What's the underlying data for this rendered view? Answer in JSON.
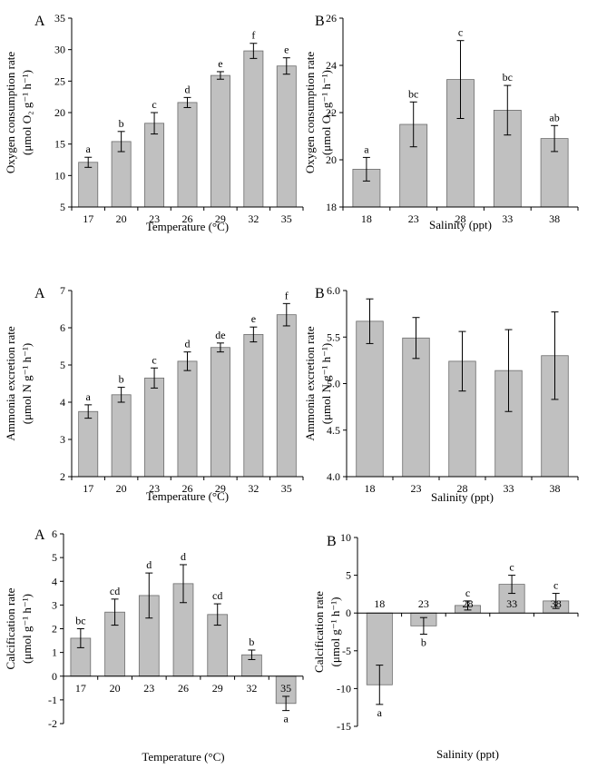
{
  "chart_data": [
    {
      "id": "oxy-temp",
      "panel_label": "A",
      "type": "bar",
      "categories": [
        "17",
        "20",
        "23",
        "26",
        "29",
        "32",
        "35"
      ],
      "values": [
        12.1,
        15.4,
        18.3,
        21.6,
        25.9,
        29.8,
        27.4
      ],
      "errors": [
        0.8,
        1.6,
        1.7,
        0.8,
        0.6,
        1.2,
        1.3
      ],
      "letters": [
        "a",
        "b",
        "c",
        "d",
        "e",
        "f",
        "e"
      ],
      "ylim": [
        5,
        35
      ],
      "yticks": [
        5,
        10,
        15,
        20,
        25,
        30,
        35
      ],
      "ytick_labels": [
        "5",
        "10",
        "15",
        "20",
        "25",
        "30",
        "35"
      ],
      "xlabel": "Temperature (°C)",
      "ylabel": [
        "Oxygen consumption rate",
        "(μmol O₂ g⁻¹ h⁻¹)"
      ]
    },
    {
      "id": "oxy-sal",
      "panel_label": "B",
      "type": "bar",
      "categories": [
        "18",
        "23",
        "28",
        "33",
        "38"
      ],
      "values": [
        19.6,
        21.5,
        23.4,
        22.1,
        20.9
      ],
      "errors": [
        0.5,
        0.95,
        1.65,
        1.05,
        0.55
      ],
      "letters": [
        "a",
        "bc",
        "c",
        "bc",
        "ab"
      ],
      "ylim": [
        18,
        26
      ],
      "yticks": [
        18,
        20,
        22,
        24,
        26
      ],
      "ytick_labels": [
        "18",
        "20",
        "22",
        "24",
        "26"
      ],
      "xlabel": "Salinity (ppt)",
      "ylabel": [
        "Oxygen consumption rate",
        "(μmol O₂ g⁻¹ h⁻¹)"
      ]
    },
    {
      "id": "amm-temp",
      "panel_label": "A",
      "type": "bar",
      "categories": [
        "17",
        "20",
        "23",
        "26",
        "29",
        "32",
        "35"
      ],
      "values": [
        3.75,
        4.2,
        4.65,
        5.1,
        5.47,
        5.82,
        6.35
      ],
      "errors": [
        0.18,
        0.2,
        0.27,
        0.25,
        0.12,
        0.2,
        0.3
      ],
      "letters": [
        "a",
        "b",
        "c",
        "d",
        "de",
        "e",
        "f"
      ],
      "ylim": [
        2,
        7
      ],
      "yticks": [
        2,
        3,
        4,
        5,
        6,
        7
      ],
      "ytick_labels": [
        "2",
        "3",
        "4",
        "5",
        "6",
        "7"
      ],
      "xlabel": "Temperature (°C)",
      "ylabel": [
        "Ammonia excretion rate",
        "(μmol N g⁻¹ h⁻¹)"
      ]
    },
    {
      "id": "amm-sal",
      "panel_label": "B",
      "type": "bar",
      "categories": [
        "18",
        "23",
        "28",
        "33",
        "38"
      ],
      "values": [
        5.67,
        5.49,
        5.24,
        5.14,
        5.3
      ],
      "errors": [
        0.24,
        0.22,
        0.32,
        0.44,
        0.47
      ],
      "letters": [],
      "ylim": [
        4.0,
        6.0
      ],
      "yticks": [
        4.0,
        4.5,
        5.0,
        5.5,
        6.0
      ],
      "ytick_labels": [
        "4.0",
        "4.5",
        "5.0",
        "5.5",
        "6.0"
      ],
      "xlabel": "Salinity (ppt)",
      "ylabel": [
        "Ammonia excretion rate",
        "(μmol N g⁻¹ h⁻¹)"
      ]
    },
    {
      "id": "calc-temp",
      "panel_label": "A",
      "type": "bar",
      "categories": [
        "17",
        "20",
        "23",
        "26",
        "29",
        "32",
        "35"
      ],
      "values": [
        1.6,
        2.7,
        3.4,
        3.9,
        2.6,
        0.9,
        -1.15
      ],
      "errors": [
        0.4,
        0.55,
        0.95,
        0.8,
        0.45,
        0.2,
        0.3
      ],
      "letters": [
        "bc",
        "cd",
        "d",
        "d",
        "cd",
        "b",
        "a"
      ],
      "ylim": [
        -2,
        6
      ],
      "yticks": [
        -2,
        -1,
        0,
        1,
        2,
        3,
        4,
        5,
        6
      ],
      "ytick_labels": [
        "-2",
        "-1",
        "0",
        "1",
        "2",
        "3",
        "4",
        "5",
        "6"
      ],
      "xlabel": "Temperature (°C)",
      "ylabel": [
        "Calcification rate",
        "(μmol g⁻¹ h⁻¹)"
      ]
    },
    {
      "id": "calc-sal",
      "panel_label": "B",
      "type": "bar",
      "categories": [
        "18",
        "23",
        "28",
        "33",
        "38"
      ],
      "values": [
        -9.5,
        -1.7,
        1.0,
        3.8,
        1.6
      ],
      "errors": [
        2.6,
        1.1,
        0.6,
        1.2,
        1.0
      ],
      "letters": [
        "a",
        "b",
        "c",
        "c",
        "c"
      ],
      "ylim": [
        -15,
        10
      ],
      "yticks": [
        -15,
        -10,
        -5,
        0,
        5,
        10
      ],
      "ytick_labels": [
        "-15",
        "-10",
        "-5",
        "0",
        "5",
        "10"
      ],
      "xlabel": "Salinity (ppt)",
      "ylabel": [
        "Calcification rate",
        "(μmol g⁻¹ h⁻¹)"
      ]
    }
  ]
}
